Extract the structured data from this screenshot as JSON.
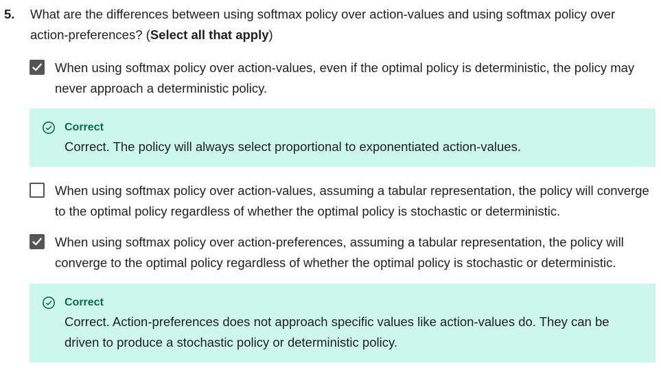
{
  "question": {
    "number": "5.",
    "text": "What are the differences between using softmax policy over action-values and using softmax policy over action-preferences? (",
    "emphasis": "Select all that apply",
    "text_end": ")"
  },
  "options": [
    {
      "checked": true,
      "text": "When using softmax policy over action-values, even if the optimal policy is deterministic, the policy may never approach a deterministic policy.",
      "feedback": {
        "label": "Correct",
        "text": "Correct. The policy will always select proportional to exponentiated action-values."
      }
    },
    {
      "checked": false,
      "text": "When using softmax policy over action-values, assuming a tabular representation, the policy will converge to the optimal policy regardless of whether the optimal policy is stochastic or deterministic."
    },
    {
      "checked": true,
      "text": "When using softmax policy over action-preferences, assuming a tabular representation, the policy will converge to the optimal policy regardless of whether the optimal policy is stochastic or deterministic.",
      "feedback": {
        "label": "Correct",
        "text": "Correct. Action-preferences does not approach specific values like action-values do. They can be driven to produce a stochastic policy or deterministic policy."
      }
    }
  ],
  "colors": {
    "feedback_bg": "#cdf7ec",
    "correct_green": "#0a6b46",
    "checkbox_gray": "#555555"
  },
  "icons": {
    "checked": "checkmark-icon",
    "correct": "check-circle-icon"
  }
}
